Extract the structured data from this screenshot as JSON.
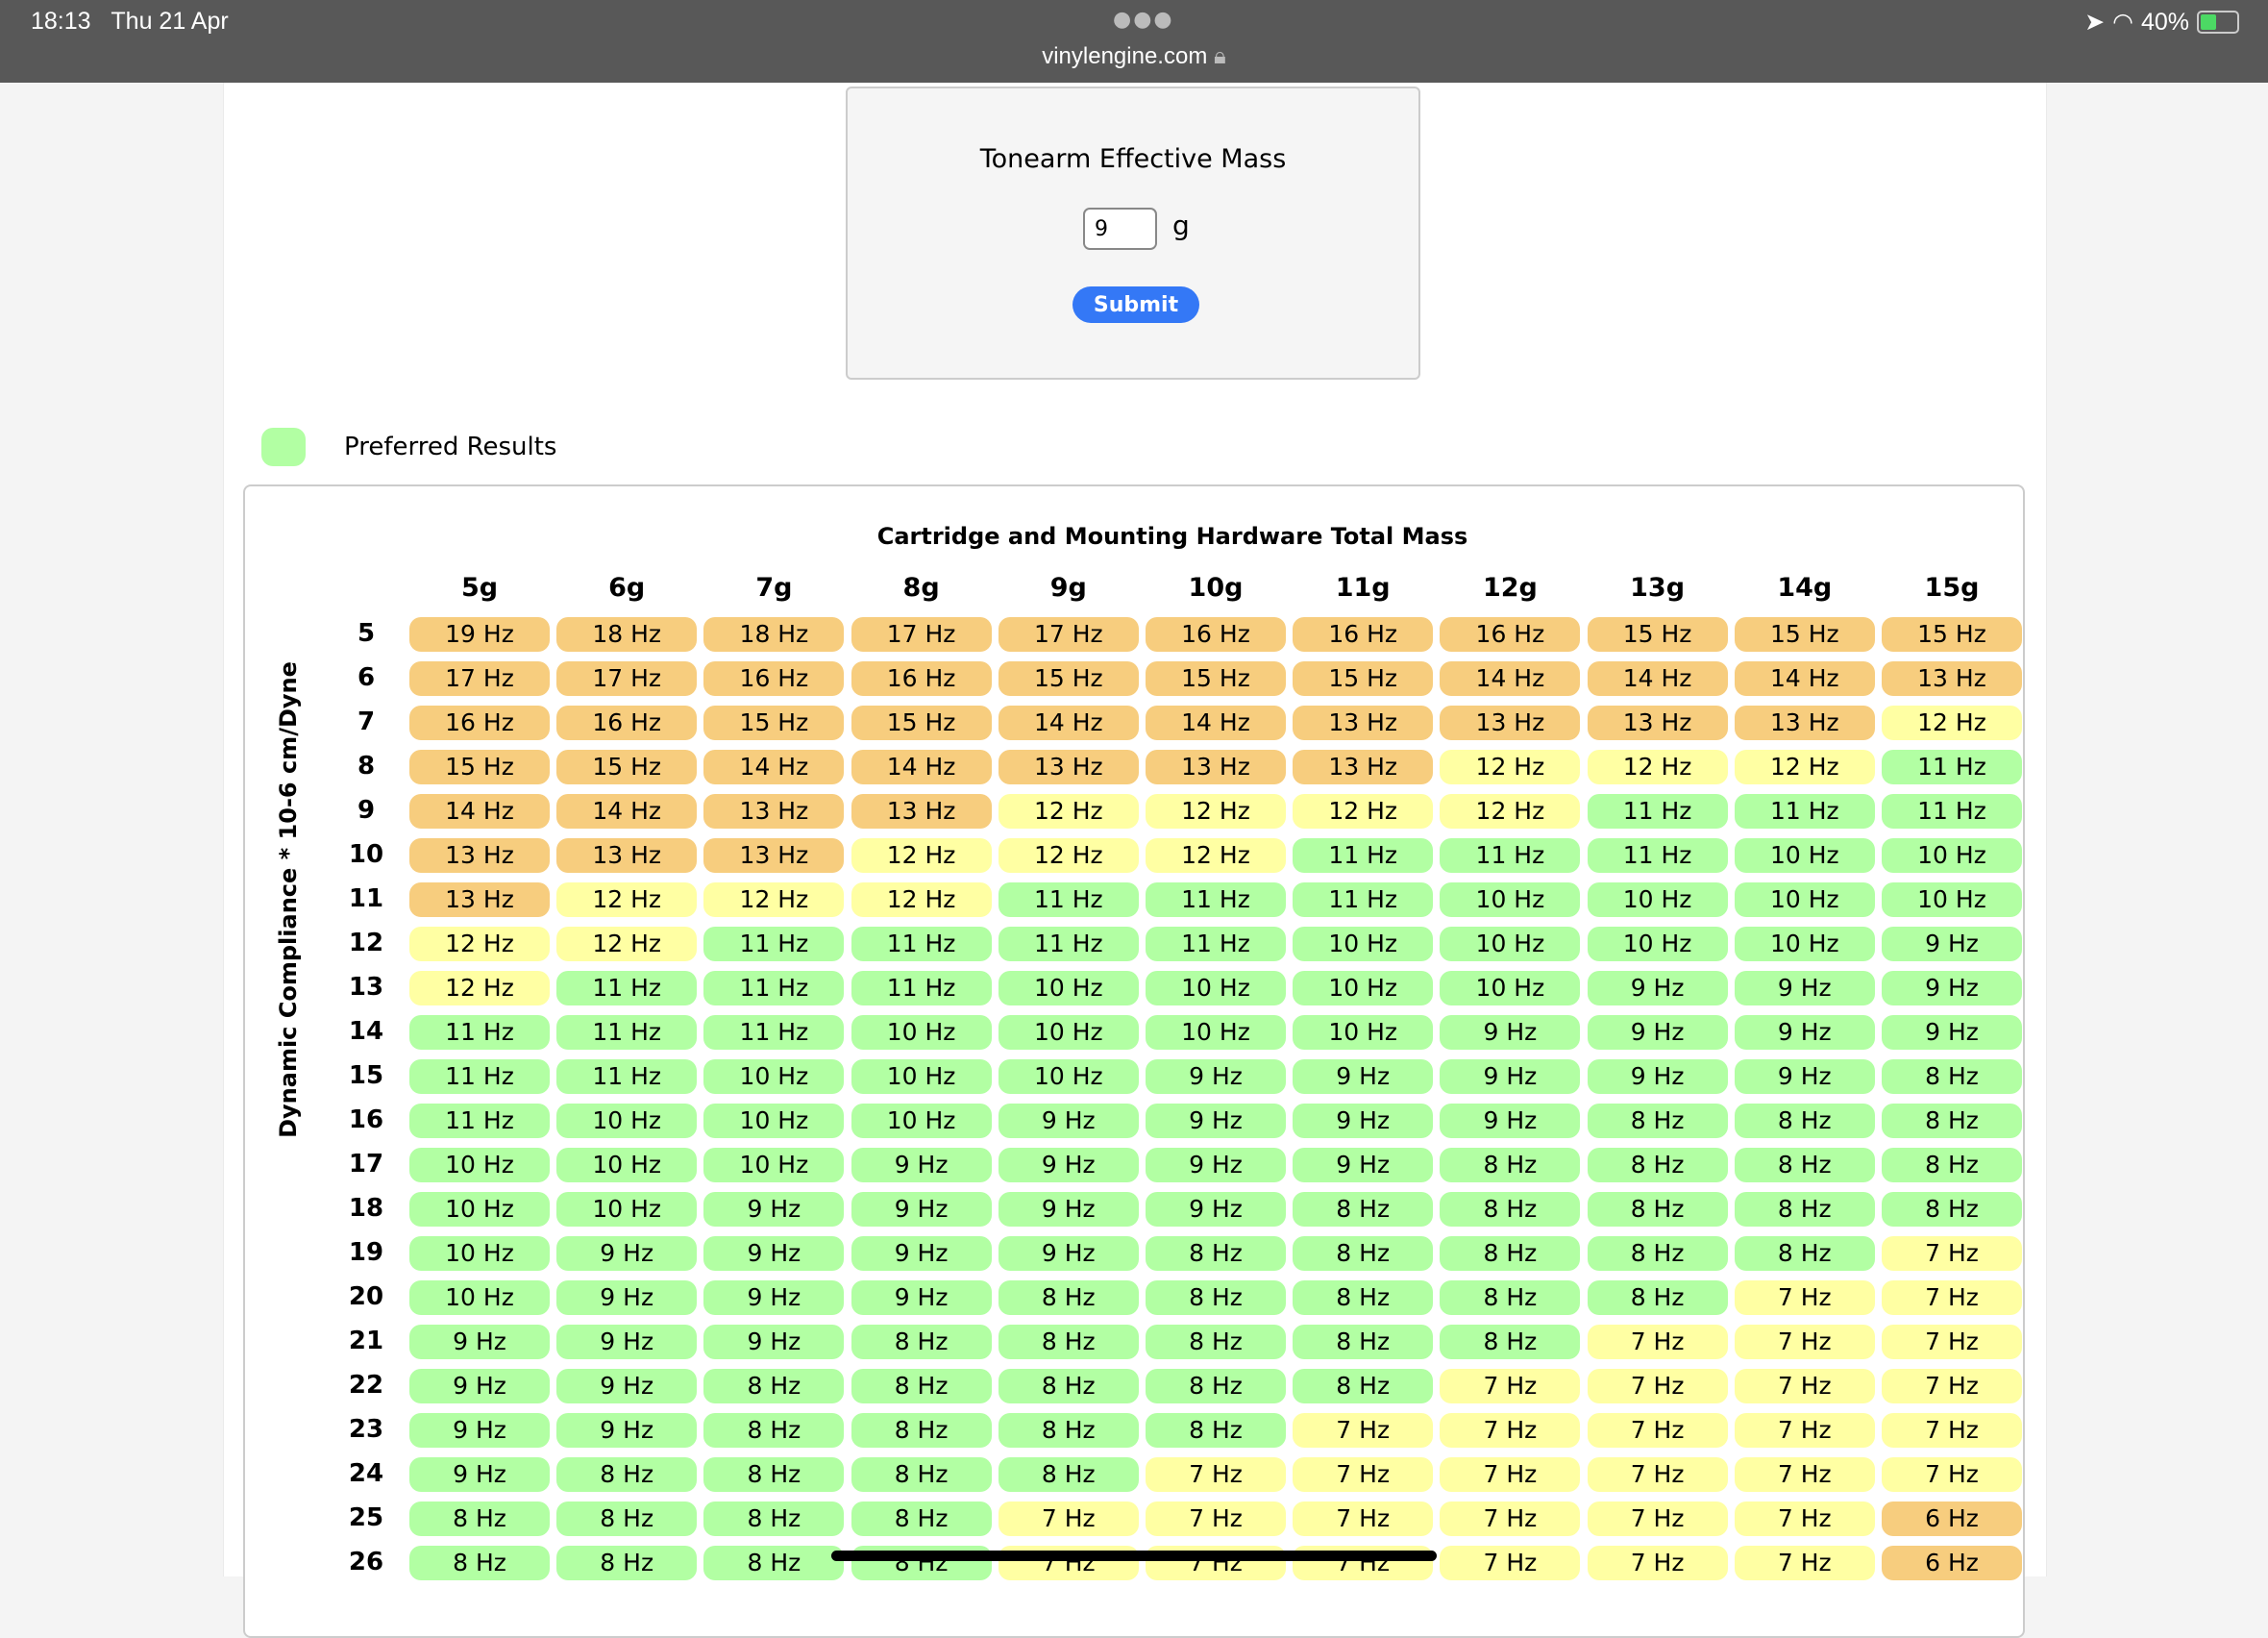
{
  "status_bar": {
    "time": "18:13",
    "date": "Thu 21 Apr",
    "url": "vinylengine.com",
    "battery": "40%",
    "battery_level": 0.4,
    "icons": [
      "location-icon",
      "wifi-icon",
      "lock-icon",
      "battery-charging-icon"
    ]
  },
  "form": {
    "title": "Tonearm Effective Mass",
    "mass_value": "9",
    "unit": "g",
    "submit_label": "Submit"
  },
  "legend": {
    "label": "Preferred Results",
    "color": "#b2ffa3"
  },
  "colors": {
    "orange": "#f7cd7e",
    "yellow": "#ffffa3",
    "green": "#b2ffa3",
    "accent": "#3478f6"
  },
  "chart_data": {
    "type": "table",
    "title": "Cartridge and Mounting Hardware Total Mass",
    "ylabel": "Dynamic Compliance * 10-6 cm/Dyne",
    "columns": [
      "5g",
      "6g",
      "7g",
      "8g",
      "9g",
      "10g",
      "11g",
      "12g",
      "13g",
      "14g",
      "15g"
    ],
    "rows": [
      {
        "label": "5",
        "values": [
          19,
          18,
          18,
          17,
          17,
          16,
          16,
          16,
          15,
          15,
          15
        ]
      },
      {
        "label": "6",
        "values": [
          17,
          17,
          16,
          16,
          15,
          15,
          15,
          14,
          14,
          14,
          13
        ]
      },
      {
        "label": "7",
        "values": [
          16,
          16,
          15,
          15,
          14,
          14,
          13,
          13,
          13,
          13,
          12
        ]
      },
      {
        "label": "8",
        "values": [
          15,
          15,
          14,
          14,
          13,
          13,
          13,
          12,
          12,
          12,
          11
        ]
      },
      {
        "label": "9",
        "values": [
          14,
          14,
          13,
          13,
          12,
          12,
          12,
          12,
          11,
          11,
          11
        ]
      },
      {
        "label": "10",
        "values": [
          13,
          13,
          13,
          12,
          12,
          12,
          11,
          11,
          11,
          10,
          10
        ]
      },
      {
        "label": "11",
        "values": [
          13,
          12,
          12,
          12,
          11,
          11,
          11,
          10,
          10,
          10,
          10
        ]
      },
      {
        "label": "12",
        "values": [
          12,
          12,
          11,
          11,
          11,
          11,
          10,
          10,
          10,
          10,
          9
        ]
      },
      {
        "label": "13",
        "values": [
          12,
          11,
          11,
          11,
          10,
          10,
          10,
          10,
          9,
          9,
          9
        ]
      },
      {
        "label": "14",
        "values": [
          11,
          11,
          11,
          10,
          10,
          10,
          10,
          9,
          9,
          9,
          9
        ]
      },
      {
        "label": "15",
        "values": [
          11,
          11,
          10,
          10,
          10,
          9,
          9,
          9,
          9,
          9,
          8
        ]
      },
      {
        "label": "16",
        "values": [
          11,
          10,
          10,
          10,
          9,
          9,
          9,
          9,
          8,
          8,
          8
        ]
      },
      {
        "label": "17",
        "values": [
          10,
          10,
          10,
          9,
          9,
          9,
          9,
          8,
          8,
          8,
          8
        ]
      },
      {
        "label": "18",
        "values": [
          10,
          10,
          9,
          9,
          9,
          9,
          8,
          8,
          8,
          8,
          8
        ]
      },
      {
        "label": "19",
        "values": [
          10,
          9,
          9,
          9,
          9,
          8,
          8,
          8,
          8,
          8,
          7
        ]
      },
      {
        "label": "20",
        "values": [
          10,
          9,
          9,
          9,
          8,
          8,
          8,
          8,
          8,
          7,
          7
        ]
      },
      {
        "label": "21",
        "values": [
          9,
          9,
          9,
          8,
          8,
          8,
          8,
          8,
          7,
          7,
          7
        ]
      },
      {
        "label": "22",
        "values": [
          9,
          9,
          8,
          8,
          8,
          8,
          8,
          7,
          7,
          7,
          7
        ]
      },
      {
        "label": "23",
        "values": [
          9,
          9,
          8,
          8,
          8,
          8,
          7,
          7,
          7,
          7,
          7
        ]
      },
      {
        "label": "24",
        "values": [
          9,
          8,
          8,
          8,
          8,
          7,
          7,
          7,
          7,
          7,
          7
        ]
      },
      {
        "label": "25",
        "values": [
          8,
          8,
          8,
          8,
          7,
          7,
          7,
          7,
          7,
          7,
          6
        ]
      },
      {
        "label": "26",
        "values": [
          8,
          8,
          8,
          8,
          7,
          7,
          7,
          7,
          7,
          7,
          6
        ]
      }
    ],
    "unit": "Hz"
  }
}
